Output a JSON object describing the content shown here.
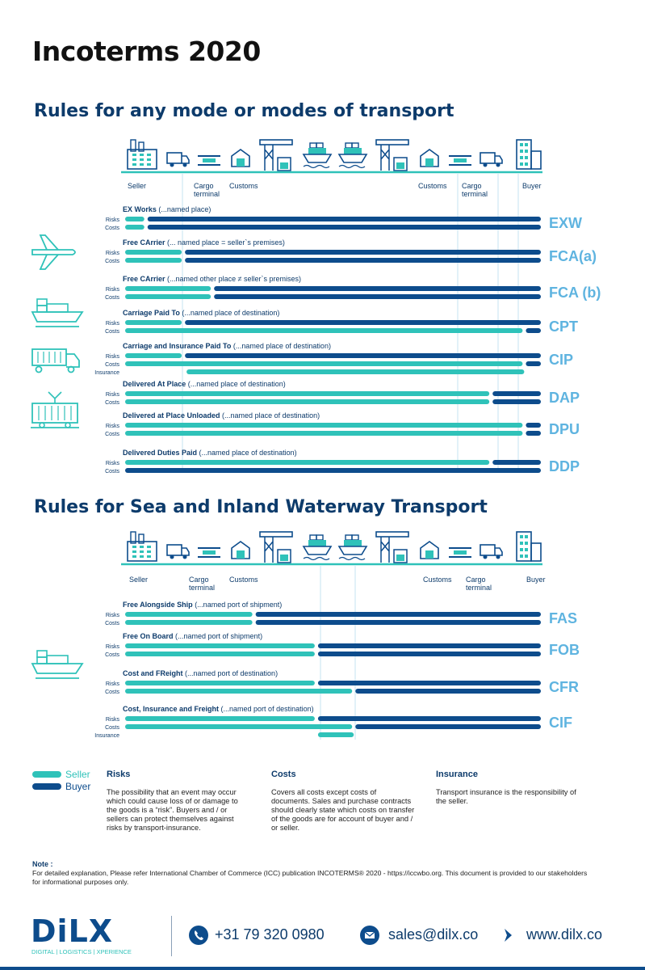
{
  "page": {
    "title": "Incoterms 2020"
  },
  "sections": [
    {
      "title": "Rules for any mode or modes of transport",
      "locations": [
        "Seller",
        "Cargo terminal",
        "Customs",
        "Customs",
        "Cargo terminal",
        "Buyer"
      ],
      "rules": [
        {
          "label": "EX Works",
          "place": "(...named place)",
          "code": "EXW",
          "bars": [
            [
              "Risks",
              0.05
            ],
            [
              "Costs",
              0.05
            ]
          ]
        },
        {
          "label": "Free CArrier",
          "place": "(... named place = seller`s premises)",
          "code": "FCA(a)",
          "bars": [
            [
              "Risks",
              0.14
            ],
            [
              "Costs",
              0.14
            ]
          ]
        },
        {
          "label": "Free CArrier",
          "place": "(...named other place ≠ seller`s premises)",
          "code": "FCA (b)",
          "bars": [
            [
              "Risks",
              0.21
            ],
            [
              "Costs",
              0.21
            ]
          ]
        },
        {
          "label": "Carriage Paid To",
          "place": "(...named place of destination)",
          "code": "CPT",
          "bars": [
            [
              "Risks",
              0.14
            ],
            [
              "Costs",
              0.96
            ]
          ]
        },
        {
          "label": "Carriage and Insurance Paid To",
          "place": "(...named place of destination)",
          "code": "CIP",
          "bars": [
            [
              "Risks",
              0.14
            ],
            [
              "Costs",
              0.96
            ],
            [
              "Insurance",
              1.0
            ]
          ]
        },
        {
          "label": "Delivered At Place",
          "place": "(...named place of destination)",
          "code": "DAP",
          "bars": [
            [
              "Risks",
              0.88
            ],
            [
              "Costs",
              0.88
            ]
          ]
        },
        {
          "label": "Delivered at Place Unloaded",
          "place": "(...named place of destination)",
          "code": "DPU",
          "bars": [
            [
              "Risks",
              0.96
            ],
            [
              "Costs",
              0.96
            ]
          ]
        },
        {
          "label": "Delivered Duties Paid",
          "place": "(...named place of destination)",
          "code": "DDP",
          "bars": [
            [
              "Risks",
              0.88
            ],
            [
              "Costs",
              0.0
            ]
          ]
        }
      ]
    },
    {
      "title": "Rules for Sea and Inland Waterway Transport",
      "locations": [
        "Seller",
        "Cargo terminal",
        "Customs",
        "Customs",
        "Cargo terminal",
        "Buyer"
      ],
      "rules": [
        {
          "label": "Free Alongside Ship",
          "place": "(...named port of shipment)",
          "code": "FAS",
          "bars": [
            [
              "Risks",
              0.31
            ],
            [
              "Costs",
              0.31
            ]
          ]
        },
        {
          "label": "Free On Board",
          "place": "(...named port of shipment)",
          "code": "FOB",
          "bars": [
            [
              "Risks",
              0.46
            ],
            [
              "Costs",
              0.46
            ]
          ]
        },
        {
          "label": "Cost and FReight",
          "place": "(...named port of destination)",
          "code": "CFR",
          "bars": [
            [
              "Risks",
              0.46
            ],
            [
              "Costs",
              0.55
            ]
          ]
        },
        {
          "label": "Cost, Insurance and Freight",
          "place": " (...named port of destination)",
          "code": "CIF",
          "bars": [
            [
              "Risks",
              0.46
            ],
            [
              "Costs",
              0.55
            ],
            [
              "Insurance",
              1.0
            ]
          ]
        }
      ]
    }
  ],
  "legend": {
    "seller": "Seller",
    "buyer": "Buyer",
    "risks_title": "Risks",
    "risks_text": "The possibility that an event may occur which could cause loss of or damage to the goods is a “risk”. Buyers and / or sellers can protect themselves against risks by transport-insurance.",
    "costs_title": "Costs",
    "costs_text": "Covers all costs except costs of documents. Sales and purchase contracts should clearly state which costs on transfer of the goods are for account of buyer and / or seller.",
    "insurance_title": "Insurance",
    "insurance_text": "Transport insurance is the responsibility of the seller."
  },
  "note": {
    "heading": "Note :",
    "text": "For detailed explanation, Please refer International Chamber of Commerce (ICC) publication INCOTERMS® 2020 - https://iccwbo.org. This document is provided to our stakeholders for informational purposes only."
  },
  "footer": {
    "logo": "DiLX",
    "tagline": "DIGITAL | LOGISTICS | XPERIENCE",
    "phone": "+31 79 320 0980",
    "email": "sales@dilx.co",
    "website": "www.dilx.co"
  },
  "colors": {
    "seller": "#2fc2b9",
    "buyer": "#0d4c8c",
    "code": "#5fb4e0",
    "heading": "#0d3b6b"
  }
}
